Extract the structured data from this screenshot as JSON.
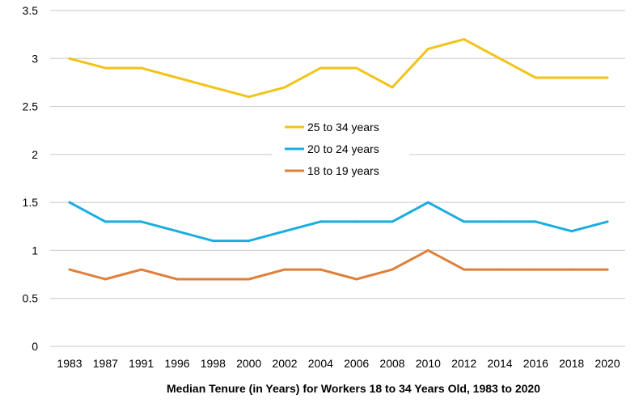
{
  "chart_data": {
    "type": "line",
    "title": "Median Tenure (in Years) for Workers 18 to 34 Years Old, 1983 to 2020",
    "xlabel": "",
    "ylabel": "",
    "categories": [
      "1983",
      "1987",
      "1991",
      "1996",
      "1998",
      "2000",
      "2002",
      "2004",
      "2006",
      "2008",
      "2010",
      "2012",
      "2014",
      "2016",
      "2018",
      "2020"
    ],
    "ylim": [
      0,
      3.5
    ],
    "yticks": [
      0,
      0.5,
      1,
      1.5,
      2,
      2.5,
      3,
      3.5
    ],
    "ytick_labels": [
      "0",
      "0.5",
      "1",
      "1.5",
      "2",
      "2.5",
      "3",
      "3.5"
    ],
    "grid": "horizontal",
    "legend_position": "center",
    "series": [
      {
        "name": "25 to 34 years",
        "color": "#F2C318",
        "values": [
          3.0,
          2.9,
          2.9,
          2.8,
          2.7,
          2.6,
          2.7,
          2.9,
          2.9,
          2.7,
          3.1,
          3.2,
          3.0,
          2.8,
          2.8,
          2.8
        ]
      },
      {
        "name": "20 to 24 years",
        "color": "#1BADE0",
        "values": [
          1.5,
          1.3,
          1.3,
          1.2,
          1.1,
          1.1,
          1.2,
          1.3,
          1.3,
          1.3,
          1.5,
          1.3,
          1.3,
          1.3,
          1.2,
          1.3
        ]
      },
      {
        "name": "18 to 19 years",
        "color": "#E07F3A",
        "values": [
          0.8,
          0.7,
          0.8,
          0.7,
          0.7,
          0.7,
          0.8,
          0.8,
          0.7,
          0.8,
          1.0,
          0.8,
          0.8,
          0.8,
          0.8,
          0.8
        ]
      }
    ]
  }
}
